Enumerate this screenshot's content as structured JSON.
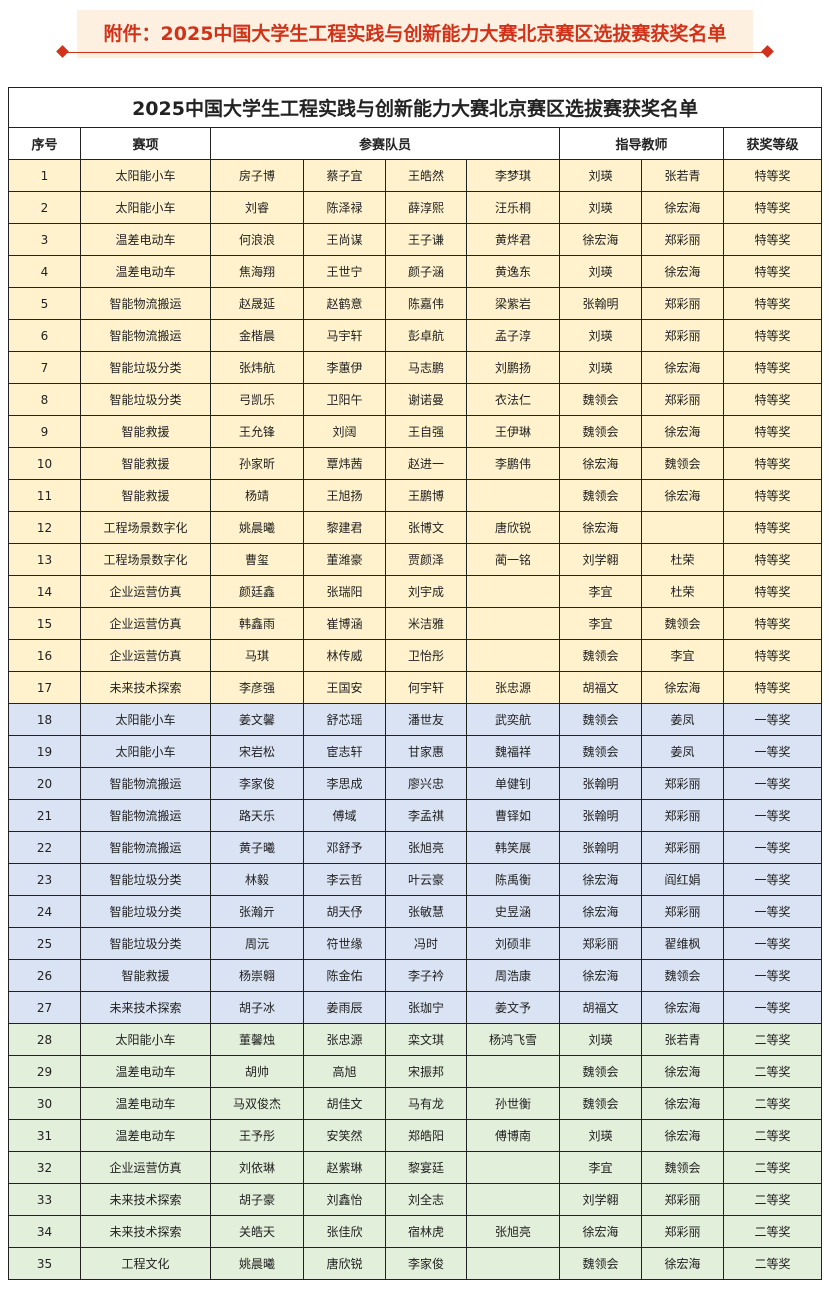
{
  "banner": {
    "title": "附件：2025中国大学生工程实践与创新能力大赛北京赛区选拔赛获奖名单",
    "color": "#d0331a"
  },
  "table": {
    "title": "2025中国大学生工程实践与创新能力大赛北京赛区选拔赛获奖名单",
    "headers": {
      "no": "序号",
      "event": "赛项",
      "members": "参赛队员",
      "advisors": "指导教师",
      "award": "获奖等级"
    },
    "tier_colors": {
      "特等奖": "#fff2cc",
      "一等奖": "#dae3f3",
      "二等奖": "#e2efda"
    },
    "rows": [
      [
        "1",
        "太阳能小车",
        "房子博",
        "蔡子宜",
        "王皓然",
        "李梦琪",
        "刘瑛",
        "张若青",
        "特等奖"
      ],
      [
        "2",
        "太阳能小车",
        "刘睿",
        "陈泽禄",
        "薛淳熙",
        "汪乐桐",
        "刘瑛",
        "徐宏海",
        "特等奖"
      ],
      [
        "3",
        "温差电动车",
        "何浪浪",
        "王尚谋",
        "王子谦",
        "黄烨君",
        "徐宏海",
        "郑彩丽",
        "特等奖"
      ],
      [
        "4",
        "温差电动车",
        "焦海翔",
        "王世宁",
        "颜子涵",
        "黄逸东",
        "刘瑛",
        "徐宏海",
        "特等奖"
      ],
      [
        "5",
        "智能物流搬运",
        "赵晟延",
        "赵鹤意",
        "陈嘉伟",
        "梁紫岩",
        "张翰明",
        "郑彩丽",
        "特等奖"
      ],
      [
        "6",
        "智能物流搬运",
        "金楷晨",
        "马宇轩",
        "彭卓航",
        "孟子淳",
        "刘瑛",
        "郑彩丽",
        "特等奖"
      ],
      [
        "7",
        "智能垃圾分类",
        "张炜航",
        "李蕙伊",
        "马志鹏",
        "刘鹏扬",
        "刘瑛",
        "徐宏海",
        "特等奖"
      ],
      [
        "8",
        "智能垃圾分类",
        "弓凯乐",
        "卫阳午",
        "谢诺曼",
        "衣法仁",
        "魏领会",
        "郑彩丽",
        "特等奖"
      ],
      [
        "9",
        "智能救援",
        "王允锋",
        "刘阔",
        "王自强",
        "王伊琳",
        "魏领会",
        "徐宏海",
        "特等奖"
      ],
      [
        "10",
        "智能救援",
        "孙家昕",
        "覃炜茜",
        "赵进一",
        "李鹏伟",
        "徐宏海",
        "魏领会",
        "特等奖"
      ],
      [
        "11",
        "智能救援",
        "杨靖",
        "王旭扬",
        "王鹏博",
        "",
        "魏领会",
        "徐宏海",
        "特等奖"
      ],
      [
        "12",
        "工程场景数字化",
        "姚晨曦",
        "黎建君",
        "张博文",
        "唐欣锐",
        "徐宏海",
        "",
        "特等奖"
      ],
      [
        "13",
        "工程场景数字化",
        "曹玺",
        "董潍豪",
        "贾颜泽",
        "蔺一铭",
        "刘学翱",
        "杜荣",
        "特等奖"
      ],
      [
        "14",
        "企业运营仿真",
        "颜廷鑫",
        "张瑞阳",
        "刘宇成",
        "",
        "李宜",
        "杜荣",
        "特等奖"
      ],
      [
        "15",
        "企业运营仿真",
        "韩鑫雨",
        "崔博涵",
        "米洁雅",
        "",
        "李宜",
        "魏领会",
        "特等奖"
      ],
      [
        "16",
        "企业运营仿真",
        "马琪",
        "林传威",
        "卫怡彤",
        "",
        "魏领会",
        "李宜",
        "特等奖"
      ],
      [
        "17",
        "未来技术探索",
        "李彦强",
        "王国安",
        "何宇轩",
        "张忠源",
        "胡福文",
        "徐宏海",
        "特等奖"
      ],
      [
        "18",
        "太阳能小车",
        "姜文馨",
        "舒芯瑶",
        "潘世友",
        "武奕航",
        "魏领会",
        "姜凤",
        "一等奖"
      ],
      [
        "19",
        "太阳能小车",
        "宋岩松",
        "宦志轩",
        "甘家惠",
        "魏福祥",
        "魏领会",
        "姜凤",
        "一等奖"
      ],
      [
        "20",
        "智能物流搬运",
        "李家俊",
        "李思成",
        "廖兴忠",
        "单健钊",
        "张翰明",
        "郑彩丽",
        "一等奖"
      ],
      [
        "21",
        "智能物流搬运",
        "路天乐",
        "傅域",
        "李孟祺",
        "曹铎如",
        "张翰明",
        "郑彩丽",
        "一等奖"
      ],
      [
        "22",
        "智能物流搬运",
        "黄子曦",
        "邓舒予",
        "张旭亮",
        "韩笑展",
        "张翰明",
        "郑彩丽",
        "一等奖"
      ],
      [
        "23",
        "智能垃圾分类",
        "林毅",
        "李云哲",
        "叶云豪",
        "陈禹衡",
        "徐宏海",
        "阎红娟",
        "一等奖"
      ],
      [
        "24",
        "智能垃圾分类",
        "张瀚亓",
        "胡天伃",
        "张敏慧",
        "史昱涵",
        "徐宏海",
        "郑彩丽",
        "一等奖"
      ],
      [
        "25",
        "智能垃圾分类",
        "周沅",
        "符世缘",
        "冯时",
        "刘硕非",
        "郑彩丽",
        "翟维枫",
        "一等奖"
      ],
      [
        "26",
        "智能救援",
        "杨崇翱",
        "陈金佑",
        "李子衿",
        "周浩康",
        "徐宏海",
        "魏领会",
        "一等奖"
      ],
      [
        "27",
        "未来技术探索",
        "胡子冰",
        "姜雨辰",
        "张珈宁",
        "姜文予",
        "胡福文",
        "徐宏海",
        "一等奖"
      ],
      [
        "28",
        "太阳能小车",
        "董馨烛",
        "张忠源",
        "栾文琪",
        "杨鸿飞雪",
        "刘瑛",
        "张若青",
        "二等奖"
      ],
      [
        "29",
        "温差电动车",
        "胡帅",
        "高旭",
        "宋振邦",
        "",
        "魏领会",
        "徐宏海",
        "二等奖"
      ],
      [
        "30",
        "温差电动车",
        "马双俊杰",
        "胡佳文",
        "马有龙",
        "孙世衡",
        "魏领会",
        "徐宏海",
        "二等奖"
      ],
      [
        "31",
        "温差电动车",
        "王予彤",
        "安笑然",
        "郑皓阳",
        "傅博南",
        "刘瑛",
        "徐宏海",
        "二等奖"
      ],
      [
        "32",
        "企业运营仿真",
        "刘依琳",
        "赵紫琳",
        "黎宴廷",
        "",
        "李宜",
        "魏领会",
        "二等奖"
      ],
      [
        "33",
        "未来技术探索",
        "胡子豪",
        "刘鑫怡",
        "刘全志",
        "",
        "刘学翱",
        "郑彩丽",
        "二等奖"
      ],
      [
        "34",
        "未来技术探索",
        "关皓天",
        "张佳欣",
        "宿林虎",
        "张旭亮",
        "徐宏海",
        "郑彩丽",
        "二等奖"
      ],
      [
        "35",
        "工程文化",
        "姚晨曦",
        "唐欣锐",
        "李家俊",
        "",
        "魏领会",
        "徐宏海",
        "二等奖"
      ]
    ]
  }
}
